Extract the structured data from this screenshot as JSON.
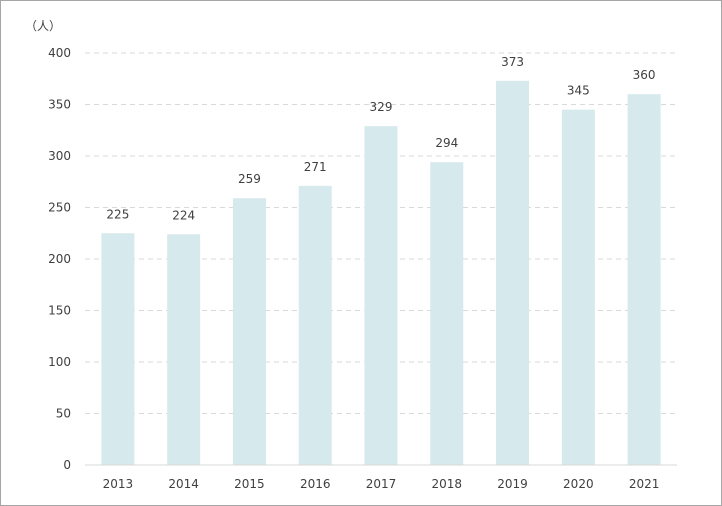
{
  "chart_data": {
    "type": "bar",
    "unit_label": "（人）",
    "categories": [
      "2013",
      "2014",
      "2015",
      "2016",
      "2017",
      "2018",
      "2019",
      "2020",
      "2021"
    ],
    "values": [
      225,
      224,
      259,
      271,
      329,
      294,
      373,
      345,
      360
    ],
    "ylim": [
      0,
      400
    ],
    "yticks": [
      0,
      50,
      100,
      150,
      200,
      250,
      300,
      350,
      400
    ],
    "grid": true,
    "data_labels": true,
    "bar_color": "#d6e9ec",
    "grid_color": "#d9d9d9",
    "axis_color": "#d9d9d9"
  }
}
